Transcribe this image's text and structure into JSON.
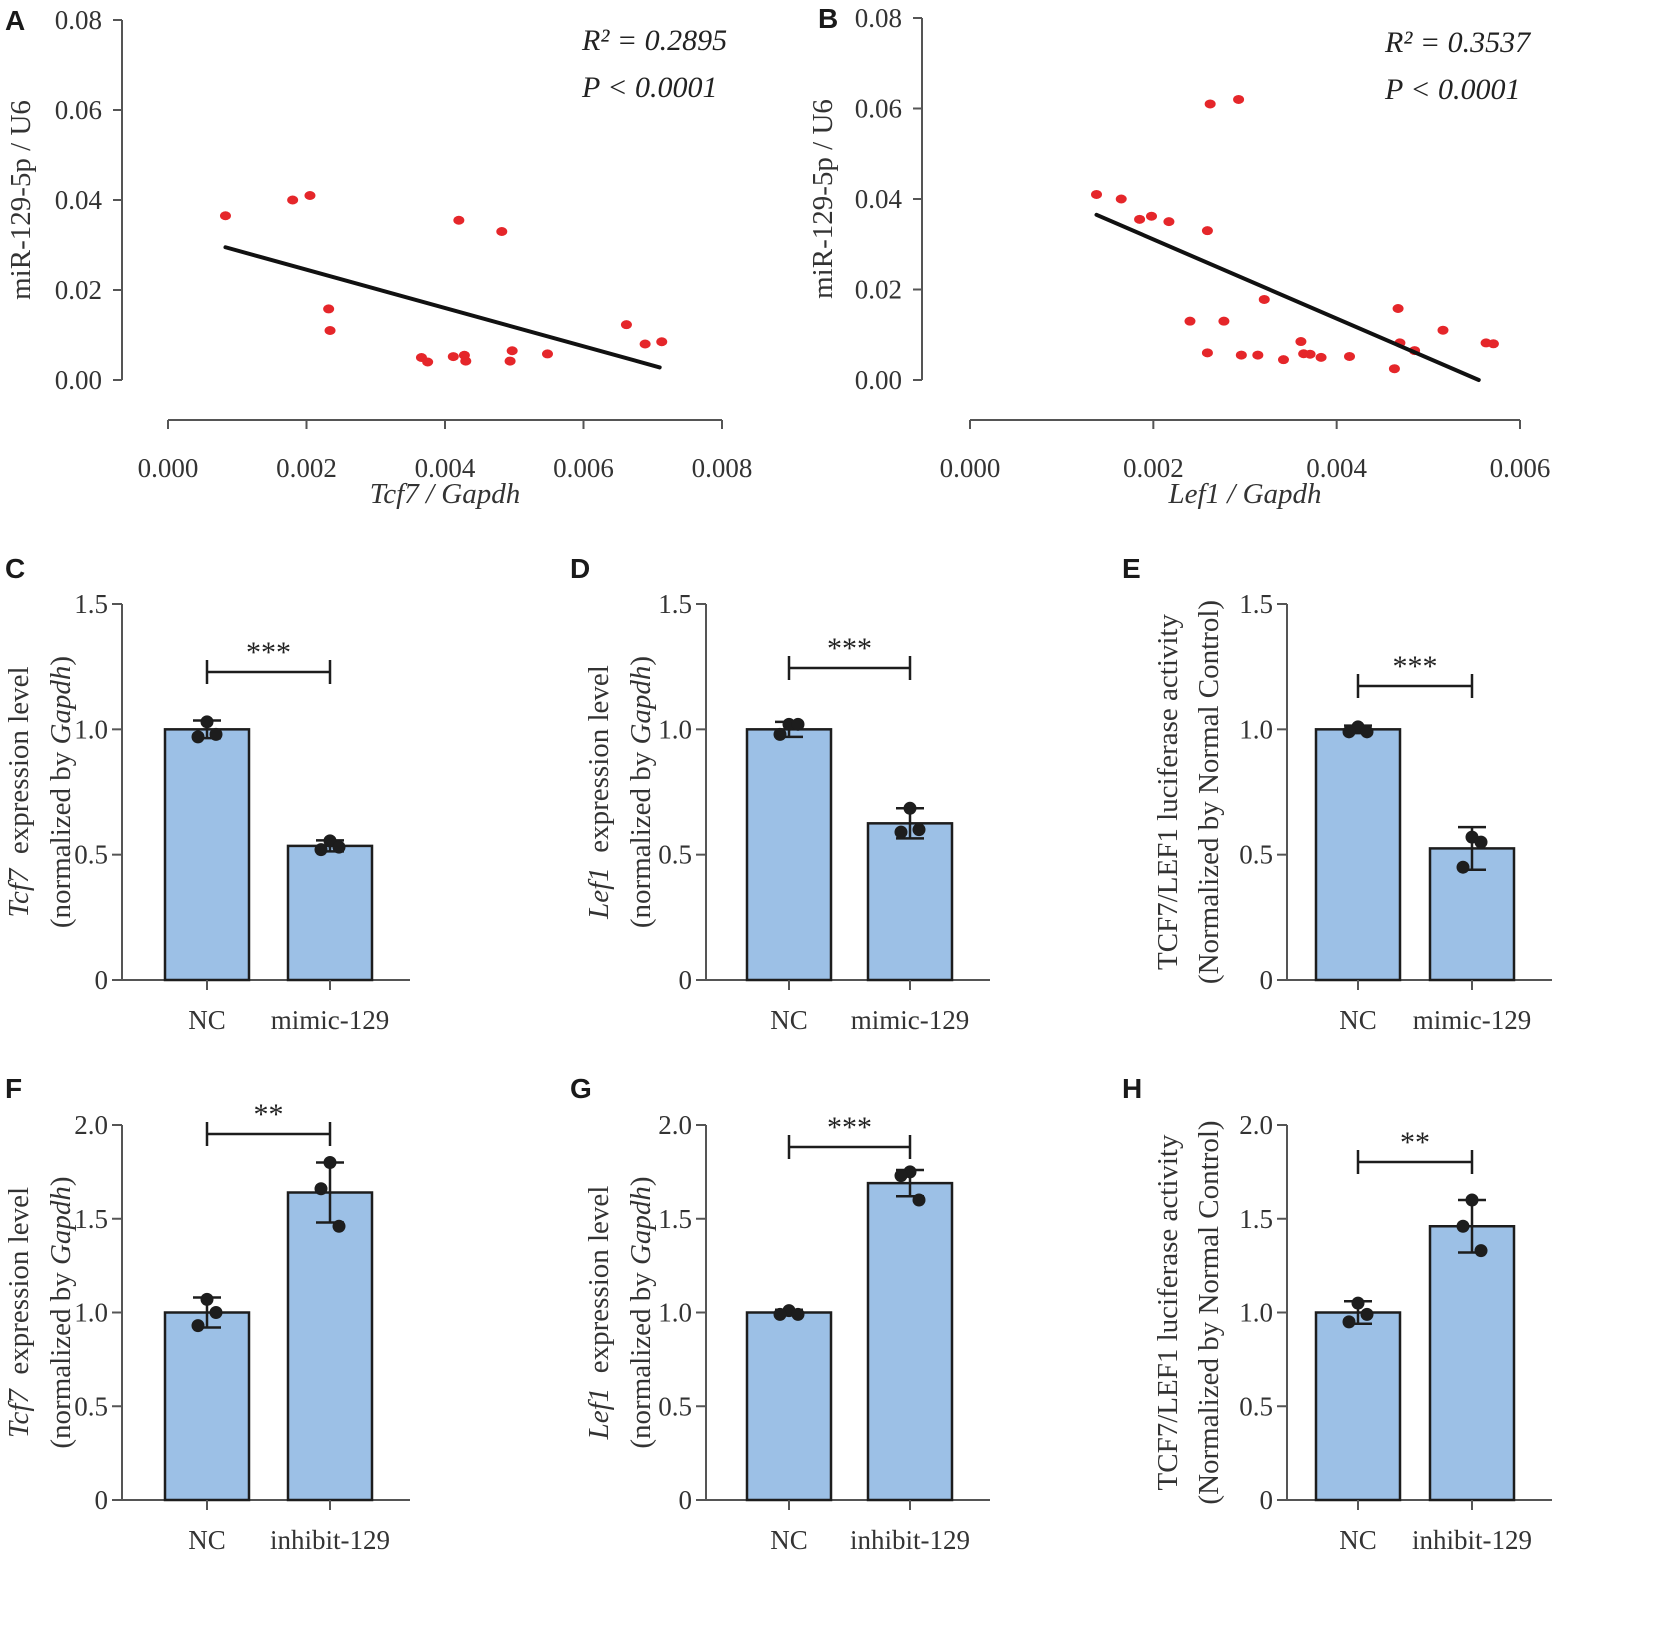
{
  "figure": {
    "title": ""
  },
  "colors": {
    "point": "#e5262a",
    "line": "#111111",
    "bar": "#9cc0e6",
    "bar_edge": "#1d1d1d",
    "axis": "#555555",
    "dot": "#1d1d1d"
  },
  "chart_data": [
    {
      "id": "A",
      "type": "scatter",
      "panel_label": "A",
      "xlabel": "Tcf7 / Gapdh",
      "ylabel": "miR-129-5p / U6",
      "xlim": [
        0.0,
        0.008
      ],
      "ylim": [
        0.0,
        0.08
      ],
      "xticks": [
        "0.000",
        "0.002",
        "0.004",
        "0.006",
        "0.008"
      ],
      "yticks": [
        "0.00",
        "0.02",
        "0.04",
        "0.06",
        "0.08"
      ],
      "stat_r2": "R² = 0.2895",
      "stat_p": "P < 0.0001",
      "points": [
        [
          0.00083,
          0.0365
        ],
        [
          0.0018,
          0.04
        ],
        [
          0.00205,
          0.041
        ],
        [
          0.00232,
          0.0158
        ],
        [
          0.00234,
          0.011
        ],
        [
          0.00366,
          0.005
        ],
        [
          0.00375,
          0.004
        ],
        [
          0.00412,
          0.0052
        ],
        [
          0.0042,
          0.0355
        ],
        [
          0.00428,
          0.0055
        ],
        [
          0.0043,
          0.0042
        ],
        [
          0.00482,
          0.033
        ],
        [
          0.00494,
          0.0042
        ],
        [
          0.00497,
          0.0065
        ],
        [
          0.00548,
          0.0058
        ],
        [
          0.00662,
          0.0123
        ],
        [
          0.00689,
          0.008
        ],
        [
          0.00713,
          0.0085
        ]
      ],
      "fit": [
        [
          0.00083,
          0.0295
        ],
        [
          0.0071,
          0.0028
        ]
      ]
    },
    {
      "id": "B",
      "type": "scatter",
      "panel_label": "B",
      "xlabel": "Lef1 / Gapdh",
      "ylabel": "miR-129-5p / U6",
      "xlim": [
        0.0,
        0.006
      ],
      "ylim": [
        0.0,
        0.08
      ],
      "xticks": [
        "0.000",
        "0.002",
        "0.004",
        "0.006"
      ],
      "yticks": [
        "0.00",
        "0.02",
        "0.04",
        "0.06",
        "0.08"
      ],
      "stat_r2": "R² = 0.3537",
      "stat_p": "P < 0.0001",
      "points": [
        [
          0.00138,
          0.041
        ],
        [
          0.00165,
          0.04
        ],
        [
          0.00185,
          0.0355
        ],
        [
          0.00198,
          0.0362
        ],
        [
          0.00217,
          0.035
        ],
        [
          0.0024,
          0.013
        ],
        [
          0.00259,
          0.033
        ],
        [
          0.00259,
          0.006
        ],
        [
          0.00262,
          0.061
        ],
        [
          0.00277,
          0.013
        ],
        [
          0.00293,
          0.062
        ],
        [
          0.00296,
          0.0055
        ],
        [
          0.00314,
          0.0055
        ],
        [
          0.00321,
          0.0178
        ],
        [
          0.00342,
          0.0045
        ],
        [
          0.00361,
          0.0085
        ],
        [
          0.00364,
          0.0058
        ],
        [
          0.00371,
          0.0057
        ],
        [
          0.00383,
          0.005
        ],
        [
          0.00414,
          0.0052
        ],
        [
          0.00463,
          0.0025
        ],
        [
          0.00467,
          0.0158
        ],
        [
          0.00469,
          0.0082
        ],
        [
          0.00485,
          0.0065
        ],
        [
          0.00516,
          0.011
        ],
        [
          0.00563,
          0.0082
        ],
        [
          0.00571,
          0.008
        ]
      ],
      "fit": [
        [
          0.00138,
          0.0365
        ],
        [
          0.00555,
          0.0
        ]
      ]
    },
    {
      "id": "C",
      "type": "bar",
      "panel_label": "C",
      "ylabel_gene": "Tcf7",
      "ylabel_rest": "expression level",
      "ylabel2_pre": "(normalized by ",
      "ylabel2_gene": "Gapdh",
      "ylabel2_post": ")",
      "categories": [
        "NC",
        "mimic-129"
      ],
      "values": [
        1.0,
        0.535
      ],
      "errors": [
        0.035,
        0.022
      ],
      "points": [
        [
          1.03,
          0.97,
          0.98
        ],
        [
          0.555,
          0.52,
          0.53
        ]
      ],
      "ylim": [
        0,
        1.5
      ],
      "yticks": [
        "0",
        "0.5",
        "1.0",
        "1.5"
      ],
      "significance": "***"
    },
    {
      "id": "D",
      "type": "bar",
      "panel_label": "D",
      "ylabel_gene": "Lef1",
      "ylabel_rest": "expression level",
      "ylabel2_pre": "(normalized by ",
      "ylabel2_gene": "Gapdh",
      "ylabel2_post": ")",
      "categories": [
        "NC",
        "mimic-129"
      ],
      "values": [
        1.0,
        0.625
      ],
      "errors": [
        0.03,
        0.06
      ],
      "points": [
        [
          1.02,
          0.98,
          1.02
        ],
        [
          0.685,
          0.59,
          0.6
        ]
      ],
      "ylim": [
        0,
        1.5
      ],
      "yticks": [
        "0",
        "0.5",
        "1.0",
        "1.5"
      ],
      "significance": "***"
    },
    {
      "id": "E",
      "type": "bar",
      "panel_label": "E",
      "ylabel_line1": "TCF7/LEF1 luciferase activity",
      "ylabel_line2": "(Normalized by Normal Control)",
      "categories": [
        "NC",
        "mimic-129"
      ],
      "values": [
        1.0,
        0.525
      ],
      "errors": [
        0.015,
        0.085
      ],
      "points": [
        [
          1.01,
          0.99,
          0.99
        ],
        [
          0.57,
          0.45,
          0.55
        ]
      ],
      "ylim": [
        0,
        1.5
      ],
      "yticks": [
        "0",
        "0.5",
        "1.0",
        "1.5"
      ],
      "significance": "***"
    },
    {
      "id": "F",
      "type": "bar",
      "panel_label": "F",
      "ylabel_gene": "Tcf7",
      "ylabel_rest": "expression level",
      "ylabel2_pre": "(normalized by ",
      "ylabel2_gene": "Gapdh",
      "ylabel2_post": ")",
      "categories": [
        "NC",
        "inhibit-129"
      ],
      "values": [
        1.0,
        1.64
      ],
      "errors": [
        0.08,
        0.16
      ],
      "points": [
        [
          1.07,
          0.93,
          1.0
        ],
        [
          1.8,
          1.66,
          1.46
        ]
      ],
      "ylim": [
        0,
        2.0
      ],
      "yticks": [
        "0",
        "0.5",
        "1.0",
        "1.5",
        "2.0"
      ],
      "significance": "**"
    },
    {
      "id": "G",
      "type": "bar",
      "panel_label": "G",
      "ylabel_gene": "Lef1",
      "ylabel_rest": "expression level",
      "ylabel2_pre": "(normalized by ",
      "ylabel2_gene": "Gapdh",
      "ylabel2_post": ")",
      "categories": [
        "NC",
        "inhibit-129"
      ],
      "values": [
        1.0,
        1.69
      ],
      "errors": [
        0.015,
        0.07
      ],
      "points": [
        [
          1.01,
          0.99,
          0.99
        ],
        [
          1.75,
          1.73,
          1.6
        ]
      ],
      "ylim": [
        0,
        2.0
      ],
      "yticks": [
        "0",
        "0.5",
        "1.0",
        "1.5",
        "2.0"
      ],
      "significance": "***"
    },
    {
      "id": "H",
      "type": "bar",
      "panel_label": "H",
      "ylabel_line1": "TCF7/LEF1 luciferase activity",
      "ylabel_line2": "(Normalized by Normal Control)",
      "categories": [
        "NC",
        "inhibit-129"
      ],
      "values": [
        1.0,
        1.46
      ],
      "errors": [
        0.06,
        0.14
      ],
      "points": [
        [
          1.05,
          0.95,
          0.99
        ],
        [
          1.6,
          1.46,
          1.33
        ]
      ],
      "ylim": [
        0,
        2.0
      ],
      "yticks": [
        "0",
        "0.5",
        "1.0",
        "1.5",
        "2.0"
      ],
      "significance": "**"
    }
  ]
}
